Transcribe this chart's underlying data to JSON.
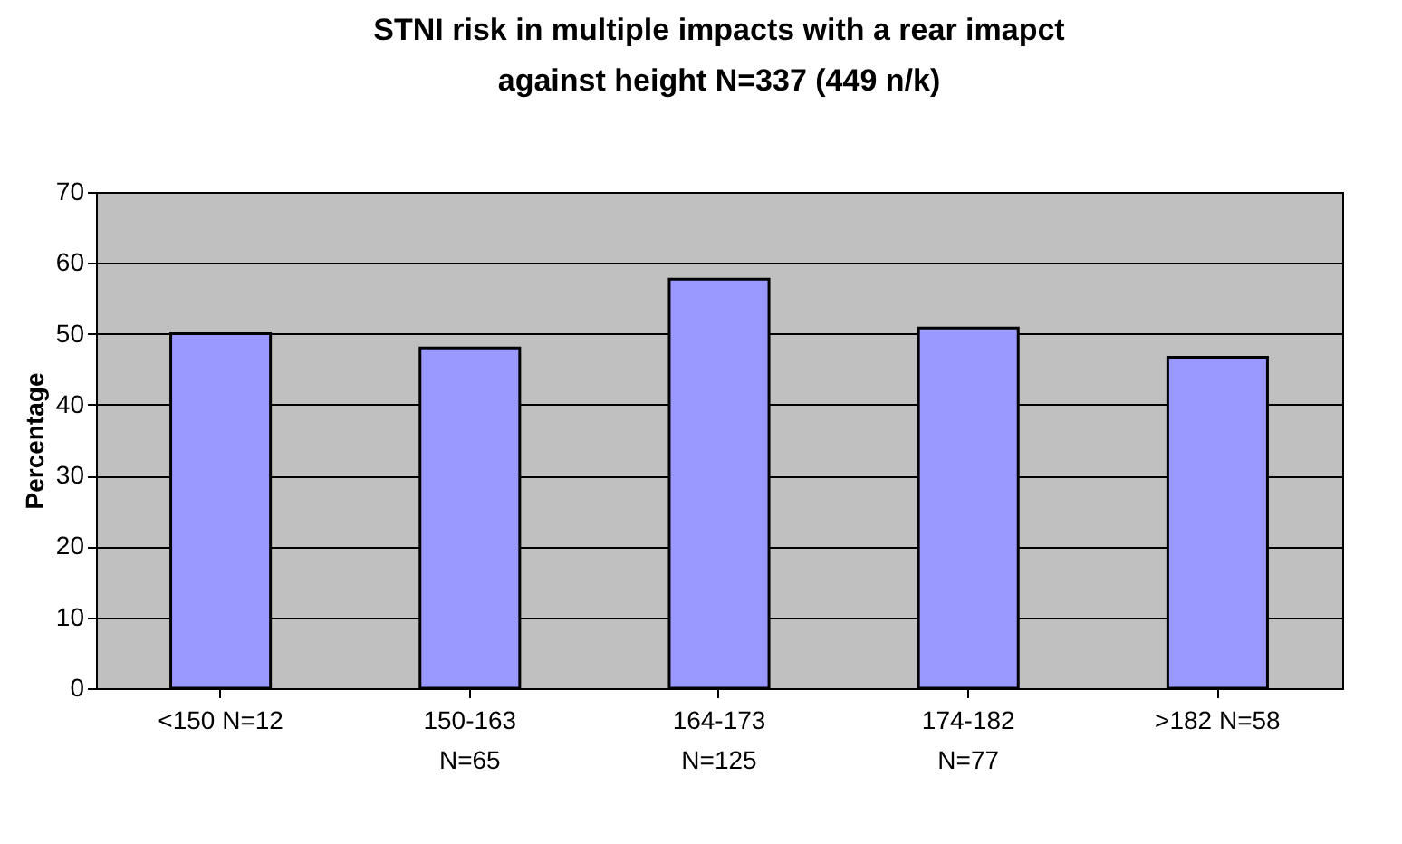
{
  "chart_data": {
    "type": "bar",
    "title": "STNI risk in multiple impacts with a rear imapct\nagainst height N=337 (449 n/k)",
    "ylabel": "Percentage",
    "categories": [
      "<150 N=12",
      "150-163\nN=65",
      "164-173\nN=125",
      "174-182\nN=77",
      ">182 N=58"
    ],
    "values": [
      50,
      48,
      57.7,
      50.8,
      46.7
    ],
    "color": "#9999ff",
    "ylim": [
      0,
      70
    ],
    "yticks": [
      0,
      10,
      20,
      30,
      40,
      50,
      60,
      70
    ],
    "grid": "y"
  }
}
